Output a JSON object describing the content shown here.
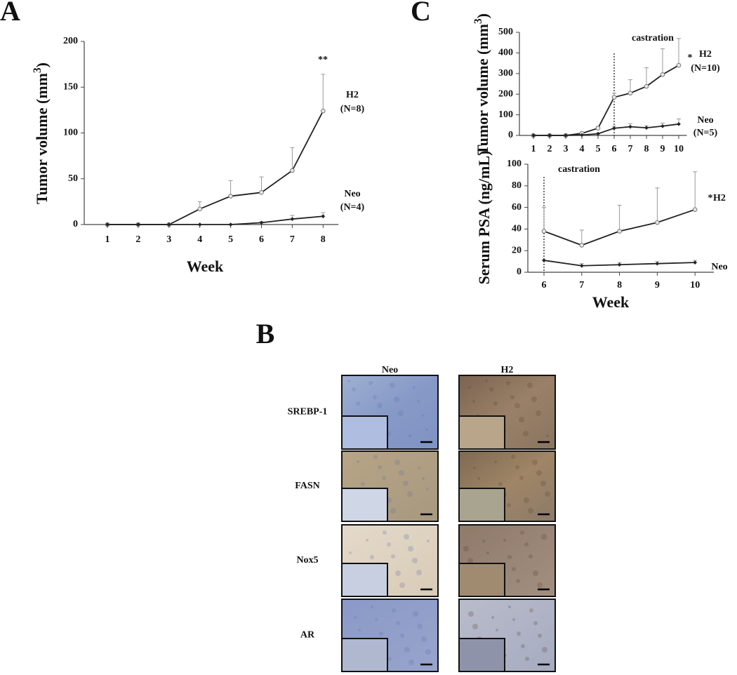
{
  "chart_data": [
    {
      "type": "line",
      "panel": "A",
      "x": [
        1,
        2,
        3,
        4,
        5,
        6,
        7,
        8
      ],
      "x_label": "Week",
      "y_label": "Tumor volume (mm",
      "y_label_sup": "3",
      "y_label_end": ")",
      "ylim": [
        0,
        200
      ],
      "yticks": [
        0,
        50,
        100,
        150,
        200
      ],
      "significance": "**",
      "series": [
        {
          "name": "H2",
          "n_label": "(N=8)",
          "color": "#222222",
          "values": [
            0,
            0,
            0,
            17,
            31,
            35,
            59,
            124
          ],
          "errors": [
            0,
            0,
            0,
            8,
            17,
            17,
            25,
            40
          ]
        },
        {
          "name": "Neo",
          "n_label": "(N=4)",
          "color": "#222222",
          "values": [
            0,
            0,
            0,
            0,
            0,
            2,
            6,
            9
          ],
          "errors": [
            0,
            0,
            0,
            0,
            0,
            1,
            4,
            4
          ]
        }
      ]
    },
    {
      "type": "line",
      "panel": "C",
      "x": [
        1,
        2,
        3,
        4,
        5,
        6,
        7,
        8,
        9,
        10
      ],
      "y_label": "Tumor volume (mm",
      "y_label_sup": "3",
      "y_label_end": ")",
      "ylim": [
        0,
        500
      ],
      "yticks": [
        0,
        100,
        200,
        300,
        400,
        500
      ],
      "significance": "*",
      "annotation": {
        "text": "castration",
        "x": 6
      },
      "series": [
        {
          "name": "H2",
          "n_label": "(N=10)",
          "color": "#222222",
          "values": [
            0,
            0,
            0,
            10,
            35,
            185,
            205,
            238,
            295,
            340
          ],
          "errors": [
            0,
            0,
            0,
            5,
            8,
            20,
            65,
            90,
            125,
            130
          ]
        },
        {
          "name": "Neo",
          "n_label": "(N=5)",
          "color": "#222222",
          "values": [
            0,
            0,
            0,
            2,
            8,
            35,
            42,
            37,
            45,
            55
          ],
          "errors": [
            0,
            0,
            0,
            2,
            3,
            10,
            15,
            10,
            15,
            25
          ]
        }
      ]
    },
    {
      "type": "line",
      "x": [
        6,
        7,
        8,
        9,
        10
      ],
      "x_label": "Week",
      "y_label": "Serum PSA (ng/mL)",
      "ylim": [
        0,
        100
      ],
      "yticks": [
        0,
        20,
        40,
        60,
        80,
        100
      ],
      "significance": "*",
      "annotation": {
        "text": "castration",
        "x": 6
      },
      "series": [
        {
          "name": "H2",
          "color": "#222222",
          "values": [
            38,
            25,
            38,
            46,
            58
          ],
          "errors": [
            22,
            14,
            24,
            32,
            35
          ]
        },
        {
          "name": "Neo",
          "color": "#222222",
          "values": [
            11,
            6,
            7,
            8,
            9
          ],
          "errors": [
            0,
            2,
            2,
            2,
            2
          ]
        }
      ]
    }
  ],
  "panel_b": {
    "panel": "B",
    "columns": [
      "Neo",
      "H2"
    ],
    "rows": [
      "SREBP-1",
      "FASN",
      "Nox5",
      "AR"
    ]
  }
}
